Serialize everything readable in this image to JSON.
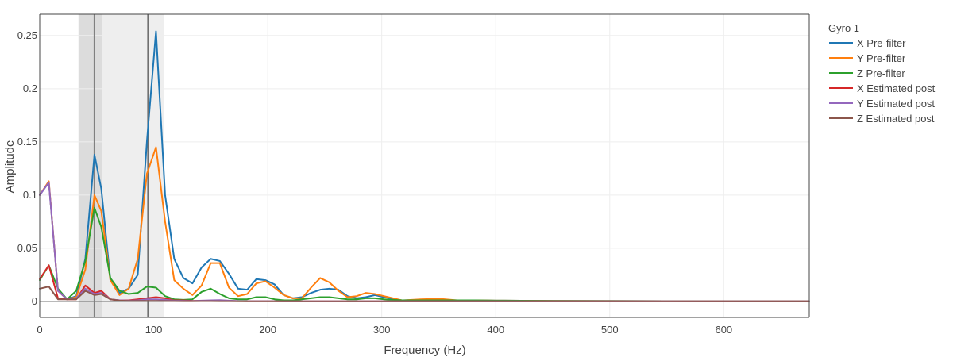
{
  "chart_data": {
    "type": "line",
    "title": "",
    "xlabel": "Frequency (Hz)",
    "ylabel": "Amplitude",
    "xlim": [
      0,
      675
    ],
    "ylim": [
      -0.015,
      0.27
    ],
    "x_ticks": [
      0,
      100,
      200,
      300,
      400,
      500,
      600
    ],
    "y_ticks": [
      0,
      0.05,
      0.1,
      0.15,
      0.2,
      0.25
    ],
    "x_tick_labels": [
      "0",
      "100",
      "200",
      "300",
      "400",
      "500",
      "600"
    ],
    "y_tick_labels": [
      "0",
      "0.05",
      "0.1",
      "0.15",
      "0.2",
      "0.25"
    ],
    "grid": true,
    "legend_title": "Gyro 1",
    "legend_position": "right",
    "shaded_bands": [
      {
        "x0": 34,
        "x1": 55,
        "color": "#d0d0d0"
      },
      {
        "x0": 55,
        "x1": 109,
        "color": "#e8e8e8"
      }
    ],
    "vertical_lines": [
      {
        "x": 48,
        "color": "#808080"
      },
      {
        "x": 95,
        "color": "#707070"
      }
    ],
    "series": [
      {
        "name": "X Pre-filter",
        "color": "#1f77b4",
        "x": [
          0,
          8,
          16,
          24,
          32,
          40,
          48,
          54,
          62,
          70,
          78,
          86,
          94,
          102,
          110,
          118,
          126,
          134,
          142,
          150,
          158,
          166,
          174,
          182,
          190,
          198,
          206,
          214,
          222,
          230,
          238,
          246,
          254,
          262,
          270,
          278,
          286,
          294,
          302,
          318,
          334,
          350,
          366,
          382,
          400,
          450,
          500,
          550,
          600,
          675
        ],
        "values": [
          0.1,
          0.112,
          0.01,
          0.002,
          0.005,
          0.04,
          0.138,
          0.106,
          0.02,
          0.008,
          0.012,
          0.025,
          0.15,
          0.254,
          0.1,
          0.04,
          0.022,
          0.017,
          0.032,
          0.04,
          0.038,
          0.026,
          0.012,
          0.011,
          0.021,
          0.02,
          0.016,
          0.006,
          0.003,
          0.004,
          0.008,
          0.011,
          0.012,
          0.011,
          0.005,
          0.003,
          0.004,
          0.006,
          0.004,
          0.001,
          0.0015,
          0.0015,
          0.001,
          0.001,
          0.0008,
          0.0005,
          0.0004,
          0.0003,
          0.0002,
          0.0001
        ]
      },
      {
        "name": "Y Pre-filter",
        "color": "#ff7f0e",
        "x": [
          0,
          8,
          16,
          24,
          32,
          40,
          48,
          54,
          62,
          70,
          78,
          86,
          94,
          102,
          110,
          118,
          126,
          134,
          142,
          150,
          158,
          166,
          174,
          182,
          190,
          198,
          206,
          214,
          222,
          230,
          238,
          246,
          254,
          262,
          270,
          278,
          286,
          294,
          302,
          318,
          334,
          350,
          366,
          382,
          400,
          450,
          500,
          550,
          600,
          675
        ],
        "values": [
          0.1,
          0.113,
          0.01,
          0.002,
          0.004,
          0.03,
          0.1,
          0.085,
          0.02,
          0.006,
          0.012,
          0.04,
          0.12,
          0.145,
          0.075,
          0.02,
          0.012,
          0.006,
          0.015,
          0.036,
          0.036,
          0.013,
          0.005,
          0.007,
          0.017,
          0.019,
          0.013,
          0.006,
          0.003,
          0.003,
          0.013,
          0.022,
          0.018,
          0.01,
          0.004,
          0.005,
          0.008,
          0.007,
          0.005,
          0.001,
          0.002,
          0.0025,
          0.001,
          0.001,
          0.0008,
          0.0005,
          0.0004,
          0.0003,
          0.0002,
          0.0001
        ]
      },
      {
        "name": "Z Pre-filter",
        "color": "#2ca02c",
        "x": [
          0,
          8,
          16,
          24,
          32,
          40,
          48,
          54,
          62,
          70,
          78,
          86,
          94,
          102,
          110,
          118,
          126,
          134,
          142,
          150,
          158,
          166,
          174,
          182,
          190,
          198,
          206,
          214,
          222,
          230,
          238,
          246,
          254,
          262,
          270,
          278,
          286,
          294,
          302,
          318,
          334,
          350,
          366,
          382,
          400,
          450,
          500,
          550,
          600,
          675
        ],
        "values": [
          0.02,
          0.034,
          0.012,
          0.002,
          0.01,
          0.038,
          0.088,
          0.07,
          0.022,
          0.01,
          0.007,
          0.008,
          0.014,
          0.013,
          0.005,
          0.002,
          0.0015,
          0.002,
          0.009,
          0.012,
          0.007,
          0.003,
          0.002,
          0.002,
          0.004,
          0.004,
          0.002,
          0.001,
          0.001,
          0.002,
          0.003,
          0.004,
          0.004,
          0.003,
          0.002,
          0.002,
          0.003,
          0.003,
          0.002,
          0.001,
          0.001,
          0.001,
          0.001,
          0.001,
          0.0008,
          0.0005,
          0.0004,
          0.0003,
          0.0002,
          0.0001
        ]
      },
      {
        "name": "X Estimated post",
        "color": "#d62728",
        "x": [
          0,
          8,
          16,
          24,
          32,
          40,
          48,
          54,
          62,
          70,
          78,
          86,
          94,
          102,
          110,
          118,
          126,
          134,
          142,
          150,
          158,
          166,
          174,
          182,
          190,
          198,
          206,
          214,
          222,
          230,
          238,
          246,
          254,
          262,
          270,
          278,
          286,
          294,
          302,
          318,
          334,
          350,
          366,
          382,
          400,
          450,
          500,
          550,
          600,
          675
        ],
        "values": [
          0.021,
          0.034,
          0.003,
          0.002,
          0.002,
          0.015,
          0.008,
          0.01,
          0.002,
          0.001,
          0.001,
          0.002,
          0.003,
          0.004,
          0.003,
          0.001,
          0.001,
          0.0005,
          0.0006,
          0.0006,
          0.0006,
          0.0005,
          0.0003,
          0.0002,
          0.0002,
          0.0002,
          0.0002,
          0.0001,
          0.0001,
          0.0001,
          0.0001,
          0.0001,
          0.0001,
          0.0001,
          0.0001,
          0.0001,
          0.0001,
          0.0001,
          0.0001,
          0.0001,
          0.0001,
          0.0001,
          0.0001,
          0.0001,
          0.0001,
          0.0001,
          0.0001,
          0.0001,
          0.0001,
          0.0001
        ]
      },
      {
        "name": "Y Estimated post",
        "color": "#9467bd",
        "x": [
          0,
          8,
          16,
          24,
          32,
          40,
          48,
          54,
          62,
          70,
          78,
          86,
          94,
          102,
          110,
          118,
          126,
          134,
          142,
          150,
          158,
          166,
          174,
          182,
          190,
          198,
          206,
          214,
          222,
          230,
          238,
          246,
          254,
          262,
          270,
          278,
          286,
          294,
          302,
          318,
          334,
          350,
          366,
          382,
          400,
          450,
          500,
          550,
          600,
          675
        ],
        "values": [
          0.1,
          0.112,
          0.01,
          0.002,
          0.003,
          0.012,
          0.007,
          0.008,
          0.002,
          0.001,
          0.0008,
          0.001,
          0.002,
          0.002,
          0.0015,
          0.0008,
          0.0006,
          0.0004,
          0.0008,
          0.001,
          0.0012,
          0.0008,
          0.0004,
          0.0002,
          0.0002,
          0.0002,
          0.0002,
          0.0001,
          0.0001,
          0.0001,
          0.0001,
          0.0001,
          0.0001,
          0.0001,
          0.0001,
          0.0001,
          0.0001,
          0.0001,
          0.0001,
          0.0001,
          0.0001,
          0.0001,
          0.0001,
          0.0001,
          0.0001,
          0.0001,
          0.0001,
          0.0001,
          0.0001,
          0.0001
        ]
      },
      {
        "name": "Z Estimated post",
        "color": "#8c564b",
        "x": [
          0,
          8,
          16,
          24,
          32,
          40,
          48,
          54,
          62,
          70,
          78,
          86,
          94,
          102,
          110,
          118,
          126,
          134,
          142,
          150,
          158,
          166,
          174,
          182,
          190,
          198,
          206,
          214,
          222,
          230,
          238,
          246,
          254,
          262,
          270,
          278,
          286,
          294,
          302,
          318,
          334,
          350,
          366,
          382,
          400,
          450,
          500,
          550,
          600,
          675
        ],
        "values": [
          0.012,
          0.014,
          0.002,
          0.002,
          0.002,
          0.01,
          0.006,
          0.007,
          0.002,
          0.0008,
          0.0005,
          0.0005,
          0.0005,
          0.0005,
          0.0004,
          0.0003,
          0.0002,
          0.0002,
          0.0003,
          0.0003,
          0.0002,
          0.0002,
          0.0001,
          0.0001,
          0.0001,
          0.0001,
          0.0001,
          0.0001,
          0.0001,
          0.0001,
          0.0001,
          0.0001,
          0.0001,
          0.0001,
          0.0001,
          0.0001,
          0.0001,
          0.0001,
          0.0001,
          0.0001,
          0.0001,
          0.0001,
          0.0001,
          0.0001,
          0.0001,
          0.0001,
          0.0001,
          0.0001,
          0.0001,
          0.0001
        ]
      }
    ]
  }
}
